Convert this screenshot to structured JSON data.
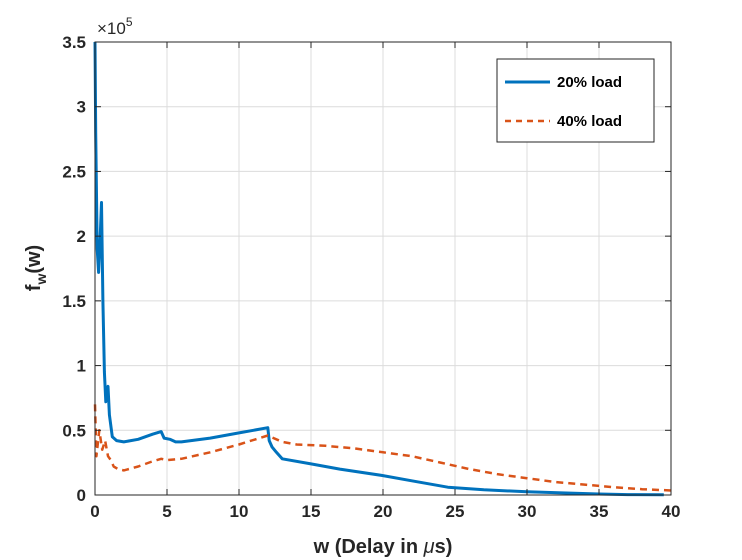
{
  "chart_data": {
    "type": "line",
    "xlabel": {
      "prefix": "w (Delay in ",
      "greek": "μ",
      "suffix": "s)"
    },
    "ylabel": {
      "base": "f",
      "sub": "w",
      "suffix": "(w)"
    },
    "xlim": [
      0,
      40
    ],
    "ylim": [
      0,
      3.5
    ],
    "x_ticks": [
      0,
      5,
      10,
      15,
      20,
      25,
      30,
      35,
      40
    ],
    "x_tick_labels": [
      "0",
      "5",
      "10",
      "15",
      "20",
      "25",
      "30",
      "35",
      "40"
    ],
    "y_ticks": [
      0,
      0.5,
      1,
      1.5,
      2,
      2.5,
      3,
      3.5
    ],
    "y_tick_labels": [
      "0",
      "0.5",
      "1",
      "1.5",
      "2",
      "2.5",
      "3",
      "3.5"
    ],
    "y_multiplier": {
      "base": "×10",
      "exponent": "5"
    },
    "grid": true,
    "legend_position": "top-right",
    "series": [
      {
        "name": "20% load",
        "color": "#0072BD",
        "dash": "solid",
        "x": [
          0,
          0.05,
          0.15,
          0.25,
          0.35,
          0.45,
          0.55,
          0.65,
          0.75,
          0.9,
          1.0,
          1.2,
          1.5,
          2.0,
          3.0,
          4.0,
          4.6,
          4.8,
          5.2,
          5.6,
          6.0,
          8.0,
          10.0,
          11.0,
          12.0,
          12.1,
          12.3,
          12.6,
          13.0,
          15.0,
          17.0,
          20.0,
          22.0,
          24.5,
          27.0,
          30.0,
          33.0,
          35.0,
          37.0,
          39.5
        ],
        "y": [
          3.5,
          2.8,
          1.9,
          1.72,
          1.95,
          2.26,
          1.5,
          0.95,
          0.72,
          0.84,
          0.62,
          0.45,
          0.42,
          0.41,
          0.43,
          0.47,
          0.49,
          0.44,
          0.43,
          0.41,
          0.41,
          0.44,
          0.48,
          0.5,
          0.52,
          0.42,
          0.37,
          0.33,
          0.28,
          0.24,
          0.2,
          0.15,
          0.11,
          0.06,
          0.04,
          0.025,
          0.015,
          0.008,
          0.003,
          0.002
        ]
      },
      {
        "name": "40% load",
        "color": "#D95319",
        "dash": "dashed",
        "x": [
          0,
          0.1,
          0.3,
          0.5,
          0.7,
          0.9,
          1.1,
          1.3,
          1.6,
          2.0,
          3.0,
          4.0,
          4.6,
          5.0,
          6.0,
          8.0,
          10.0,
          12.0,
          12.4,
          13.0,
          14.0,
          16.0,
          18.0,
          20.0,
          22.0,
          24.0,
          26.0,
          28.0,
          30.0,
          32.0,
          34.0,
          36.0,
          38.0,
          40.0
        ],
        "y": [
          0.7,
          0.3,
          0.5,
          0.35,
          0.42,
          0.3,
          0.27,
          0.22,
          0.2,
          0.19,
          0.22,
          0.26,
          0.28,
          0.27,
          0.28,
          0.33,
          0.39,
          0.46,
          0.44,
          0.41,
          0.39,
          0.38,
          0.36,
          0.33,
          0.3,
          0.25,
          0.2,
          0.16,
          0.13,
          0.1,
          0.08,
          0.06,
          0.045,
          0.035
        ]
      }
    ]
  }
}
